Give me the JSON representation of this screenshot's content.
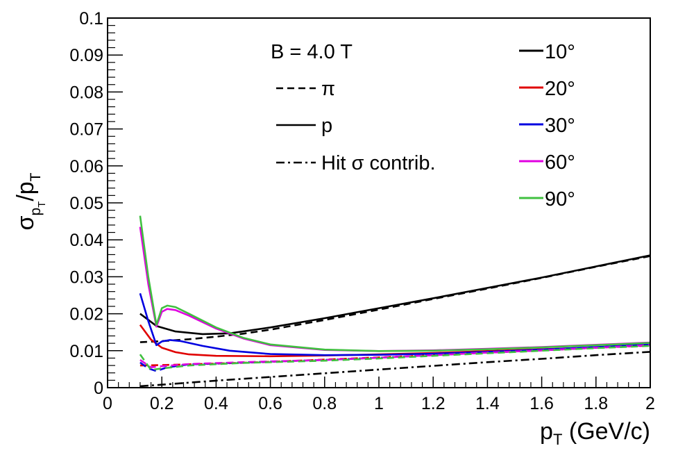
{
  "chart_data": {
    "type": "line",
    "title": "",
    "xlabel": {
      "main": "p",
      "sub": "T",
      "rest": " (GeV/c)"
    },
    "ylabel": {
      "main": "σ",
      "sub1": "p",
      "subsub": "T",
      "rest": "/p",
      "sub2": "T"
    },
    "xlim": [
      0,
      2
    ],
    "ylim": [
      0,
      0.1
    ],
    "xticks": [
      "0",
      "0.2",
      "0.4",
      "0.6",
      "0.8",
      "1",
      "1.2",
      "1.4",
      "1.6",
      "1.8",
      "2"
    ],
    "yticks": [
      "0",
      "0.01",
      "0.02",
      "0.03",
      "0.04",
      "0.05",
      "0.06",
      "0.07",
      "0.08",
      "0.09",
      "0.1"
    ],
    "annotation": "B = 4.0 T",
    "legend_styles": [
      {
        "label": "π",
        "style": "dashed"
      },
      {
        "label": "p",
        "style": "solid"
      },
      {
        "label": "Hit σ contrib.",
        "style": "dashdot"
      }
    ],
    "legend_angles": [
      {
        "label": "10°",
        "color": "#000000"
      },
      {
        "label": "20°",
        "color": "#e00000"
      },
      {
        "label": "30°",
        "color": "#0000e0"
      },
      {
        "label": "60°",
        "color": "#e000e0"
      },
      {
        "label": "90°",
        "color": "#40c040"
      }
    ],
    "series": [
      {
        "name": "10° p",
        "color": "#000000",
        "style": "solid",
        "x": [
          0.12,
          0.18,
          0.25,
          0.35,
          0.45,
          0.6,
          0.8,
          1.0,
          1.2,
          1.4,
          1.6,
          1.8,
          2.0
        ],
        "y": [
          0.02,
          0.0167,
          0.0152,
          0.0145,
          0.0147,
          0.0163,
          0.0188,
          0.0215,
          0.0242,
          0.027,
          0.0298,
          0.0328,
          0.0358
        ]
      },
      {
        "name": "10° π",
        "color": "#000000",
        "style": "dashed",
        "x": [
          0.12,
          0.2,
          0.3,
          0.4,
          0.5,
          0.6,
          0.8,
          1.0,
          1.2,
          1.4,
          1.6,
          1.8,
          2.0
        ],
        "y": [
          0.0123,
          0.0126,
          0.0131,
          0.0138,
          0.0146,
          0.0157,
          0.0183,
          0.0211,
          0.024,
          0.0268,
          0.0297,
          0.0327,
          0.0356
        ]
      },
      {
        "name": "20° p",
        "color": "#e00000",
        "style": "solid",
        "x": [
          0.12,
          0.16,
          0.2,
          0.25,
          0.3,
          0.4,
          0.6,
          0.8,
          1.0,
          1.2,
          1.4,
          1.6,
          1.8,
          2.0
        ],
        "y": [
          0.017,
          0.013,
          0.0108,
          0.0096,
          0.009,
          0.0086,
          0.0085,
          0.0087,
          0.009,
          0.0094,
          0.0099,
          0.0104,
          0.0109,
          0.0115
        ]
      },
      {
        "name": "20° π",
        "color": "#e00000",
        "style": "dashed",
        "x": [
          0.12,
          0.2,
          0.4,
          0.6,
          0.8,
          1.0,
          1.2,
          1.4,
          1.6,
          1.8,
          2.0
        ],
        "y": [
          0.006,
          0.0061,
          0.0065,
          0.007,
          0.0076,
          0.0082,
          0.0088,
          0.0095,
          0.0101,
          0.0108,
          0.0114
        ]
      },
      {
        "name": "30° p",
        "color": "#0000e0",
        "style": "solid",
        "x": [
          0.12,
          0.15,
          0.18,
          0.2,
          0.23,
          0.27,
          0.35,
          0.45,
          0.6,
          0.8,
          1.0,
          1.2,
          1.4,
          1.6,
          1.8,
          2.0
        ],
        "y": [
          0.0255,
          0.018,
          0.0115,
          0.0125,
          0.0129,
          0.0126,
          0.0113,
          0.01,
          0.0091,
          0.0088,
          0.0089,
          0.0092,
          0.0097,
          0.0103,
          0.011,
          0.0117
        ]
      },
      {
        "name": "30° π",
        "color": "#0000e0",
        "style": "dashed",
        "x": [
          0.12,
          0.15,
          0.18,
          0.22,
          0.3,
          0.5,
          0.8,
          1.0,
          1.2,
          1.4,
          1.6,
          1.8,
          2.0
        ],
        "y": [
          0.0068,
          0.0052,
          0.0045,
          0.0055,
          0.0063,
          0.0068,
          0.0075,
          0.0081,
          0.0088,
          0.0095,
          0.0101,
          0.0108,
          0.0115
        ]
      },
      {
        "name": "60° p",
        "color": "#e000e0",
        "style": "solid",
        "x": [
          0.12,
          0.15,
          0.18,
          0.2,
          0.22,
          0.25,
          0.3,
          0.4,
          0.5,
          0.6,
          0.8,
          1.0,
          1.2,
          1.4,
          1.6,
          1.8,
          2.0
        ],
        "y": [
          0.0435,
          0.028,
          0.0165,
          0.0205,
          0.0213,
          0.021,
          0.0195,
          0.016,
          0.0133,
          0.0115,
          0.0102,
          0.0099,
          0.0101,
          0.0105,
          0.011,
          0.0116,
          0.0122
        ]
      },
      {
        "name": "60° π",
        "color": "#e000e0",
        "style": "dashed",
        "x": [
          0.12,
          0.16,
          0.2,
          0.3,
          0.5,
          0.8,
          1.0,
          1.2,
          1.4,
          1.6,
          1.8,
          2.0
        ],
        "y": [
          0.0075,
          0.0055,
          0.0058,
          0.0064,
          0.0069,
          0.0075,
          0.0081,
          0.0088,
          0.0095,
          0.0101,
          0.0108,
          0.0115
        ]
      },
      {
        "name": "90° p",
        "color": "#40c040",
        "style": "solid",
        "x": [
          0.12,
          0.15,
          0.18,
          0.2,
          0.22,
          0.25,
          0.3,
          0.4,
          0.5,
          0.6,
          0.8,
          1.0,
          1.2,
          1.4,
          1.6,
          1.8,
          2.0
        ],
        "y": [
          0.0465,
          0.03,
          0.017,
          0.0215,
          0.0222,
          0.0218,
          0.02,
          0.0163,
          0.0135,
          0.0117,
          0.0103,
          0.0099,
          0.01,
          0.0104,
          0.0109,
          0.0115,
          0.0121
        ]
      },
      {
        "name": "90° π",
        "color": "#40c040",
        "style": "dashed",
        "x": [
          0.12,
          0.16,
          0.2,
          0.3,
          0.5,
          0.8,
          1.0,
          1.2,
          1.4,
          1.6,
          1.8,
          2.0
        ],
        "y": [
          0.009,
          0.0048,
          0.0052,
          0.006,
          0.0067,
          0.0073,
          0.0079,
          0.0086,
          0.0093,
          0.01,
          0.0107,
          0.0113
        ]
      },
      {
        "name": "Hit σ contrib.",
        "color": "#000000",
        "style": "dashdot",
        "x": [
          0.12,
          0.2,
          0.4,
          0.6,
          0.8,
          1.0,
          1.2,
          1.4,
          1.6,
          1.8,
          2.0
        ],
        "y": [
          0.0004,
          0.0008,
          0.0019,
          0.0029,
          0.0039,
          0.0049,
          0.0059,
          0.0069,
          0.0078,
          0.0088,
          0.0097
        ]
      }
    ]
  }
}
